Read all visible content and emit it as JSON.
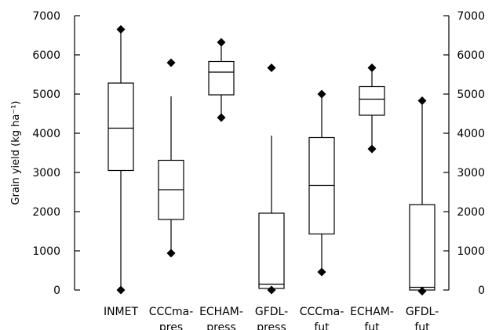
{
  "chart_data": {
    "type": "boxplot",
    "ylabel": "Grain yield (kg ha⁻¹)",
    "ylim": [
      0,
      7000
    ],
    "yticks": [
      0,
      1000,
      2000,
      3000,
      4000,
      5000,
      6000,
      7000
    ],
    "ytick_labels": [
      "0",
      "1000",
      "2000",
      "3000",
      "4000",
      "5000",
      "6000",
      "7000"
    ],
    "grid": false,
    "categories": [
      [
        "INMET"
      ],
      [
        "CCCma-",
        "pres"
      ],
      [
        "ECHAM-",
        "press"
      ],
      [
        "GFDL-",
        "press"
      ],
      [
        "CCCma-",
        "fut"
      ],
      [
        "ECHAM-",
        "fut"
      ],
      [
        "GFDL-",
        "fut"
      ]
    ],
    "boxes": [
      {
        "whisker_low": 0,
        "q1": 3050,
        "median": 4130,
        "q3": 5280,
        "whisker_high": 6650,
        "outliers": [
          0,
          6650
        ]
      },
      {
        "whisker_low": 950,
        "q1": 1800,
        "median": 2560,
        "q3": 3310,
        "whisker_high": 4940,
        "outliers": [
          940,
          5800
        ]
      },
      {
        "whisker_low": 4400,
        "q1": 4980,
        "median": 5560,
        "q3": 5830,
        "whisker_high": 6320,
        "outliers": [
          4400,
          6320
        ]
      },
      {
        "whisker_low": 0,
        "q1": 40,
        "median": 150,
        "q3": 1960,
        "whisker_high": 3940,
        "outliers": [
          0,
          5670
        ]
      },
      {
        "whisker_low": 460,
        "q1": 1430,
        "median": 2670,
        "q3": 3890,
        "whisker_high": 5000,
        "outliers": [
          460,
          5000
        ]
      },
      {
        "whisker_low": 3600,
        "q1": 4460,
        "median": 4870,
        "q3": 5190,
        "whisker_high": 5670,
        "outliers": [
          3600,
          5670
        ]
      },
      {
        "whisker_low": 0,
        "q1": 0,
        "median": 70,
        "q3": 2180,
        "whisker_high": 4830,
        "outliers": [
          -30,
          4830
        ]
      }
    ]
  }
}
